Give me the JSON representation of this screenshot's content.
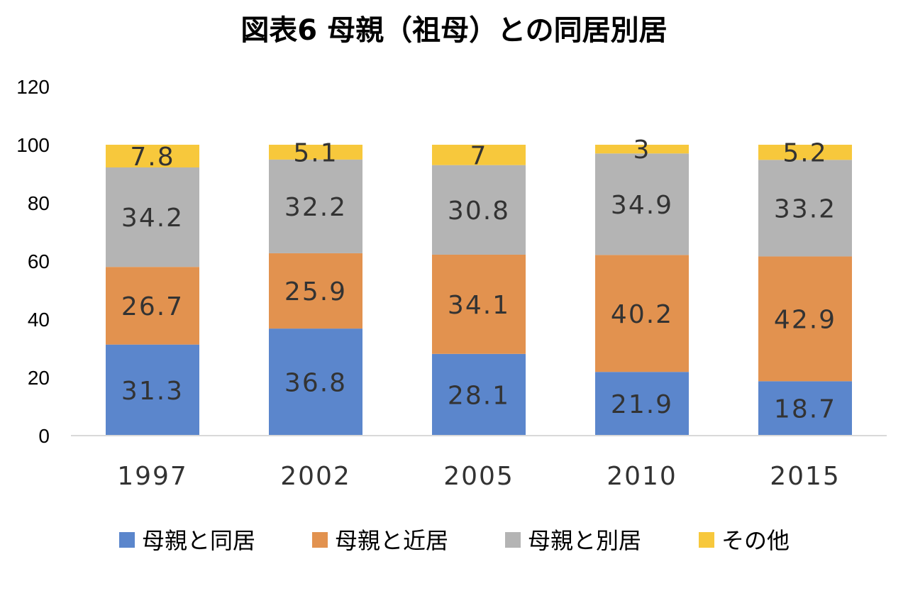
{
  "chart_data": {
    "type": "bar",
    "stacked": true,
    "title": "図表6 母親（祖母）との同居別居",
    "xlabel": "",
    "ylabel": "",
    "categories": [
      "1997",
      "2002",
      "2005",
      "2010",
      "2015"
    ],
    "ylim": [
      0,
      120
    ],
    "yticks": [
      0,
      20,
      40,
      60,
      80,
      100,
      120
    ],
    "grid": false,
    "legend_position": "bottom",
    "series": [
      {
        "name": "母親と同居",
        "color": "#5B86CC",
        "values": [
          31.3,
          36.8,
          28.1,
          21.9,
          18.7
        ]
      },
      {
        "name": "母親と近居",
        "color": "#E2924F",
        "values": [
          26.7,
          25.9,
          34.1,
          40.2,
          42.9
        ]
      },
      {
        "name": "母親と別居",
        "color": "#B4B4B4",
        "values": [
          34.2,
          32.2,
          30.8,
          34.9,
          33.2
        ]
      },
      {
        "name": "その他",
        "color": "#F7C83C",
        "values": [
          7.8,
          5.1,
          7,
          3,
          5.2
        ]
      }
    ]
  }
}
